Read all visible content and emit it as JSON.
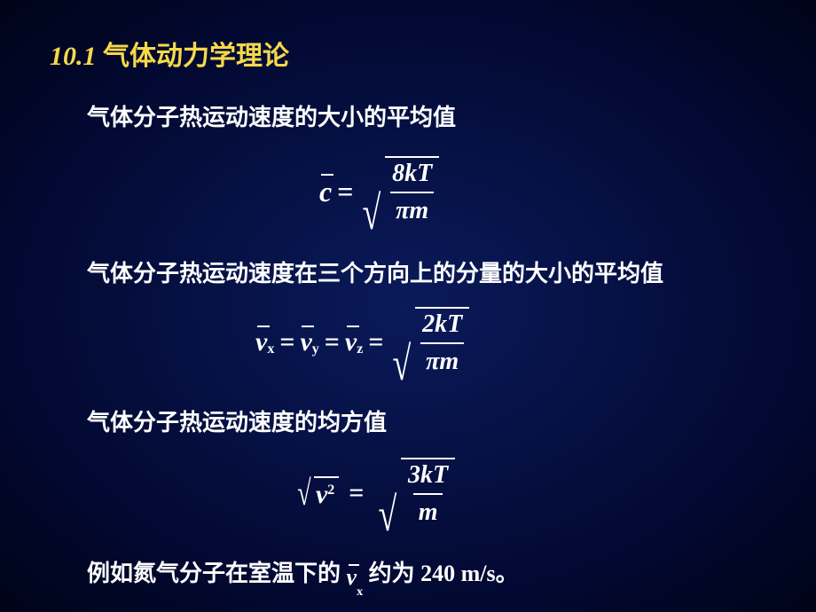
{
  "title": {
    "num": "10.1",
    "text": "气体动力学理论"
  },
  "line1": "气体分子热运动速度的大小的平均值",
  "line2": "气体分子热运动速度在三个方向上的分量的大小的平均值",
  "line3": "气体分子热运动速度的均方值",
  "line4_a": "例如氮气分子在室温下的",
  "line4_b": "约为 240 m/s。",
  "eq1": {
    "lhs": "c",
    "num": "8kT",
    "den_pi": "π",
    "den_m": "m"
  },
  "eq2": {
    "vx": "v",
    "sx": "x",
    "vy": "v",
    "sy": "y",
    "vz": "v",
    "sz": "z",
    "num": "2kT",
    "den_pi": "π",
    "den_m": "m"
  },
  "eq3": {
    "v": "v",
    "sq": "2",
    "num": "3kT",
    "den": "m"
  },
  "colors": {
    "title": "#f5d94a",
    "text": "#ffffff",
    "bg_inner": "#0a1a5a",
    "bg_outer": "#000418"
  },
  "fontsize": {
    "title": 30,
    "body": 26,
    "eq": 30,
    "frac": 28,
    "sub": 16
  }
}
